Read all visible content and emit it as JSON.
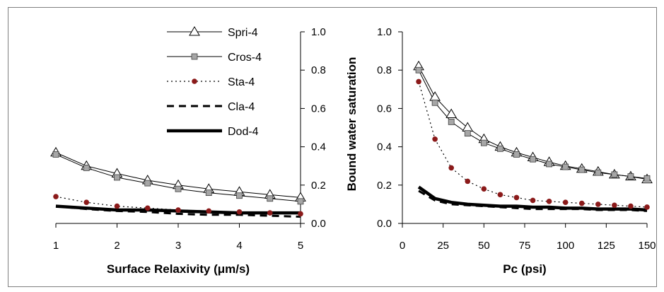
{
  "chart_data": [
    {
      "type": "line",
      "xlabel": "Surface Relaxivity (μm/s)",
      "ylabel": "",
      "x": [
        1,
        1.5,
        2,
        2.5,
        3,
        3.5,
        4,
        4.5,
        5
      ],
      "xticks": [
        "1",
        "2",
        "3",
        "4",
        "5"
      ],
      "xlim": [
        1,
        5
      ],
      "ylim": [
        0,
        1.0
      ],
      "yticks": [
        "0.0",
        "0.2",
        "0.4",
        "0.6",
        "0.8",
        "1.0"
      ],
      "y_axis_side": "right",
      "legend_position": "top",
      "series": [
        {
          "name": "Spri-4",
          "marker": "open-triangle",
          "line": "solid-thin",
          "values": [
            0.37,
            0.3,
            0.26,
            0.225,
            0.2,
            0.18,
            0.165,
            0.15,
            0.135
          ]
        },
        {
          "name": "Cros-4",
          "marker": "grey-square",
          "line": "solid-thin",
          "values": [
            0.36,
            0.29,
            0.24,
            0.21,
            0.18,
            0.16,
            0.145,
            0.13,
            0.115
          ]
        },
        {
          "name": "Sta-4",
          "marker": "dark-red-dot",
          "line": "dotted",
          "values": [
            0.14,
            0.11,
            0.09,
            0.08,
            0.07,
            0.065,
            0.06,
            0.055,
            0.05
          ]
        },
        {
          "name": "Cla-4",
          "marker": "none",
          "line": "dashed",
          "values": [
            0.09,
            0.075,
            0.065,
            0.06,
            0.05,
            0.045,
            0.045,
            0.04,
            0.035
          ]
        },
        {
          "name": "Dod-4",
          "marker": "none",
          "line": "solid-thick",
          "values": [
            0.09,
            0.08,
            0.07,
            0.07,
            0.065,
            0.06,
            0.055,
            0.055,
            0.055
          ]
        }
      ]
    },
    {
      "type": "line",
      "xlabel": "Pc (psi)",
      "ylabel": "Bound water saturation",
      "x": [
        10,
        20,
        30,
        40,
        50,
        60,
        70,
        80,
        90,
        100,
        110,
        120,
        130,
        140,
        150
      ],
      "xticks": [
        "0",
        "25",
        "50",
        "75",
        "100",
        "125",
        "150"
      ],
      "xlim": [
        0,
        150
      ],
      "ylim": [
        0,
        1.0
      ],
      "yticks": [
        "0.0",
        "0.2",
        "0.4",
        "0.6",
        "0.8",
        "1.0"
      ],
      "y_axis_side": "left",
      "series": [
        {
          "name": "Spri-4",
          "marker": "open-triangle",
          "line": "solid-thin",
          "values": [
            0.82,
            0.66,
            0.57,
            0.5,
            0.44,
            0.4,
            0.37,
            0.345,
            0.32,
            0.3,
            0.285,
            0.27,
            0.255,
            0.245,
            0.23
          ]
        },
        {
          "name": "Cros-4",
          "marker": "grey-square",
          "line": "solid-thin",
          "values": [
            0.8,
            0.63,
            0.53,
            0.47,
            0.42,
            0.39,
            0.36,
            0.335,
            0.31,
            0.295,
            0.28,
            0.265,
            0.255,
            0.245,
            0.235
          ]
        },
        {
          "name": "Sta-4",
          "marker": "dark-red-dot",
          "line": "dotted",
          "values": [
            0.74,
            0.44,
            0.29,
            0.22,
            0.18,
            0.15,
            0.135,
            0.12,
            0.115,
            0.11,
            0.105,
            0.1,
            0.095,
            0.09,
            0.085
          ]
        },
        {
          "name": "Cla-4",
          "marker": "none",
          "line": "dashed",
          "values": [
            0.17,
            0.12,
            0.1,
            0.095,
            0.09,
            0.085,
            0.08,
            0.075,
            0.075,
            0.075,
            0.075,
            0.07,
            0.07,
            0.07,
            0.065
          ]
        },
        {
          "name": "Dod-4",
          "marker": "none",
          "line": "solid-thick",
          "values": [
            0.19,
            0.13,
            0.11,
            0.1,
            0.095,
            0.09,
            0.09,
            0.085,
            0.085,
            0.08,
            0.08,
            0.075,
            0.075,
            0.075,
            0.07
          ]
        }
      ]
    }
  ],
  "colors": {
    "line": "#000000",
    "square_fill": "#a6a6a6",
    "dot_fill": "#8b1a1a",
    "frame": "#7f7f7f"
  }
}
